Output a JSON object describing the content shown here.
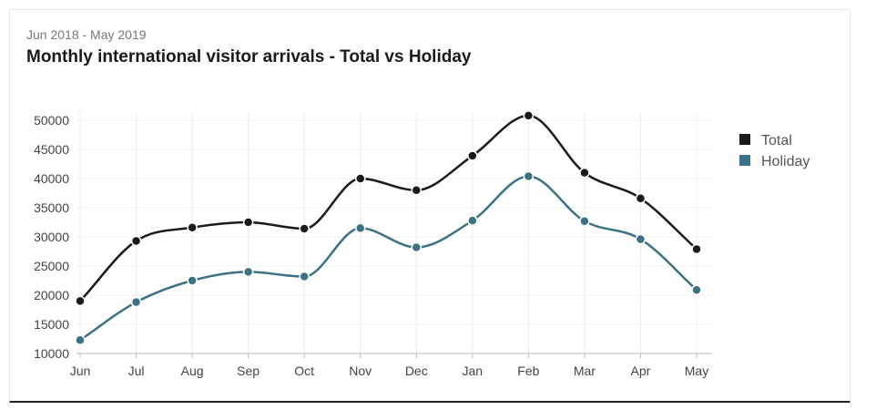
{
  "chart_data": {
    "type": "line",
    "subtitle": "Jun 2018 - May 2019",
    "title": "Monthly international visitor arrivals - Total vs Holiday",
    "categories": [
      "Jun",
      "Jul",
      "Aug",
      "Sep",
      "Oct",
      "Nov",
      "Dec",
      "Jan",
      "Feb",
      "Mar",
      "Apr",
      "May"
    ],
    "yticks": [
      10000,
      15000,
      20000,
      25000,
      30000,
      35000,
      40000,
      45000,
      50000
    ],
    "ylim": [
      10000,
      52000
    ],
    "grid": true,
    "legend_position": "right",
    "series": [
      {
        "name": "Total",
        "color": "#1a1a1a",
        "values": [
          19000,
          29300,
          31600,
          32500,
          31400,
          40000,
          38000,
          43900,
          50800,
          41000,
          36600,
          27900
        ]
      },
      {
        "name": "Holiday",
        "color": "#3b7285",
        "values": [
          12300,
          18800,
          22500,
          24000,
          23200,
          31500,
          28200,
          32800,
          40400,
          32700,
          29600,
          20900
        ]
      }
    ]
  }
}
